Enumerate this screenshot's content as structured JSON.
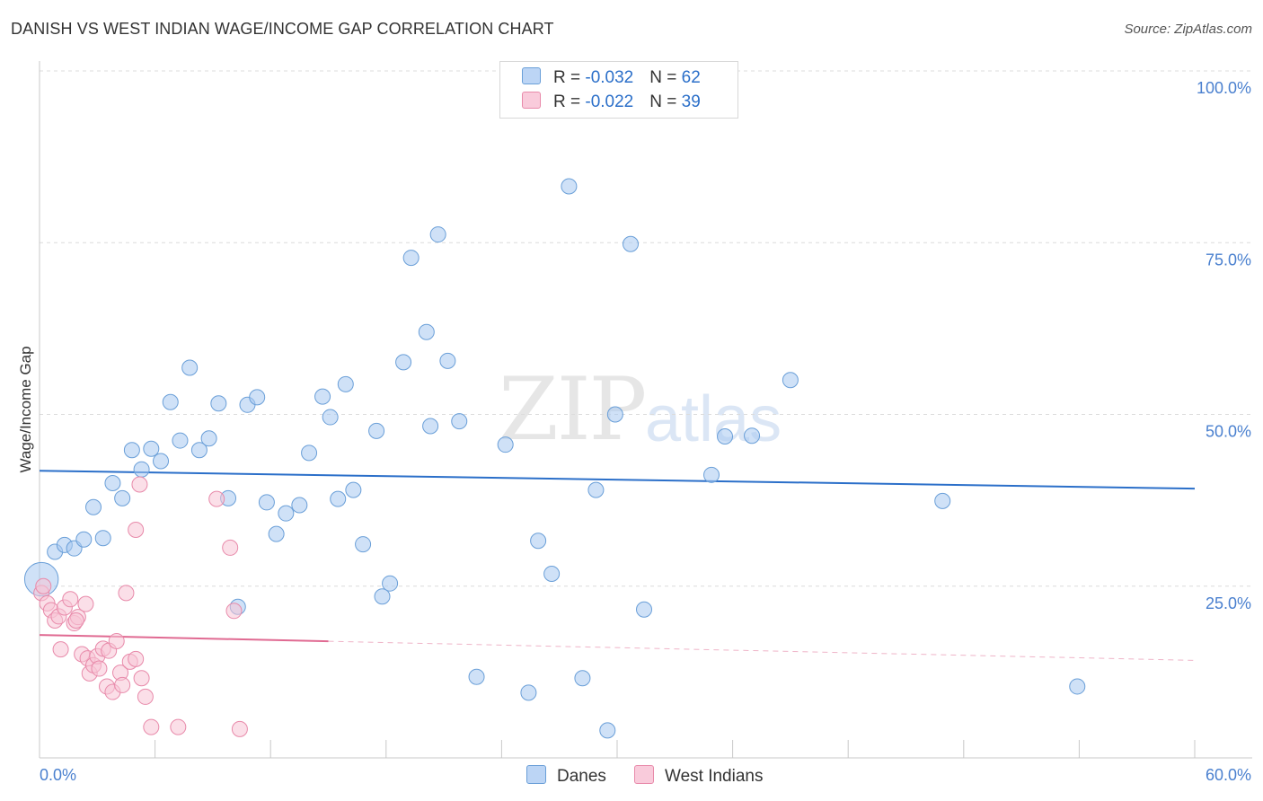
{
  "chart_data": {
    "type": "scatter",
    "title": "DANISH VS WEST INDIAN WAGE/INCOME GAP CORRELATION CHART",
    "source": "Source: ZipAtlas.com",
    "xlabel": "",
    "ylabel": "Wage/Income Gap",
    "xlim": [
      0,
      60
    ],
    "ylim": [
      0,
      100
    ],
    "x_tick_labels": [
      "0.0%",
      "60.0%"
    ],
    "y_tick_values": [
      25,
      50,
      75,
      100
    ],
    "y_tick_labels": [
      "25.0%",
      "50.0%",
      "75.0%",
      "100.0%"
    ],
    "grid": true,
    "watermark": [
      "ZIP",
      "atlas"
    ],
    "legend_stats": [
      {
        "r_label": "R = ",
        "r_value": "-0.032",
        "n_label": "N = ",
        "n_value": "62"
      },
      {
        "r_label": "R = ",
        "r_value": "-0.022",
        "n_label": "N = ",
        "n_value": "39"
      }
    ],
    "series": [
      {
        "name": "Danes",
        "color": "#a8c8f0",
        "stroke": "#6a9fd8",
        "trend": {
          "x0": 0,
          "y0": 41.8,
          "x1": 60,
          "y1": 39.2,
          "color": "#2b6fc9",
          "solid_to": 60
        },
        "points": [
          [
            0.1,
            26.0,
            2.2
          ],
          [
            0.8,
            30.0,
            1
          ],
          [
            1.3,
            31.0,
            1
          ],
          [
            1.8,
            30.5,
            1
          ],
          [
            2.3,
            31.8,
            1
          ],
          [
            2.8,
            36.5,
            1
          ],
          [
            3.3,
            32.0,
            1
          ],
          [
            3.8,
            40.0,
            1
          ],
          [
            4.3,
            37.8,
            1
          ],
          [
            4.8,
            44.8,
            1
          ],
          [
            5.3,
            42.0,
            1
          ],
          [
            5.8,
            45.0,
            1
          ],
          [
            6.3,
            43.2,
            1
          ],
          [
            6.8,
            51.8,
            1
          ],
          [
            7.3,
            46.2,
            1
          ],
          [
            7.8,
            56.8,
            1
          ],
          [
            8.3,
            44.8,
            1
          ],
          [
            8.8,
            46.5,
            1
          ],
          [
            9.3,
            51.6,
            1
          ],
          [
            9.8,
            37.8,
            1
          ],
          [
            10.3,
            22.0,
            1
          ],
          [
            10.8,
            51.4,
            1
          ],
          [
            11.3,
            52.5,
            1
          ],
          [
            11.8,
            37.2,
            1
          ],
          [
            12.3,
            32.6,
            1
          ],
          [
            12.8,
            35.6,
            1
          ],
          [
            13.5,
            36.8,
            1
          ],
          [
            14.0,
            44.4,
            1
          ],
          [
            14.7,
            52.6,
            1
          ],
          [
            15.1,
            49.6,
            1
          ],
          [
            15.5,
            37.7,
            1
          ],
          [
            15.9,
            54.4,
            1
          ],
          [
            16.3,
            39.0,
            1
          ],
          [
            16.8,
            31.1,
            1
          ],
          [
            17.5,
            47.6,
            1
          ],
          [
            17.8,
            23.5,
            1
          ],
          [
            18.2,
            25.4,
            1
          ],
          [
            18.9,
            57.6,
            1
          ],
          [
            19.3,
            72.8,
            1
          ],
          [
            20.1,
            62.0,
            1
          ],
          [
            20.3,
            48.3,
            1
          ],
          [
            20.7,
            76.2,
            1
          ],
          [
            21.2,
            57.8,
            1
          ],
          [
            21.8,
            49.0,
            1
          ],
          [
            22.7,
            11.8,
            1
          ],
          [
            24.2,
            45.6,
            1
          ],
          [
            25.4,
            9.5,
            1
          ],
          [
            25.9,
            31.6,
            1
          ],
          [
            26.6,
            26.8,
            1
          ],
          [
            27.5,
            83.2,
            1
          ],
          [
            28.2,
            11.6,
            1
          ],
          [
            28.9,
            39.0,
            1
          ],
          [
            29.5,
            4.0,
            1
          ],
          [
            29.9,
            50.0,
            1
          ],
          [
            30.7,
            74.8,
            1
          ],
          [
            31.4,
            21.6,
            1
          ],
          [
            34.9,
            41.2,
            1
          ],
          [
            35.6,
            46.8,
            1
          ],
          [
            37.0,
            46.9,
            1
          ],
          [
            39.0,
            55.0,
            1
          ],
          [
            46.9,
            37.4,
            1
          ],
          [
            53.9,
            10.4,
            1
          ]
        ]
      },
      {
        "name": "West Indians",
        "color": "#f8c4d6",
        "stroke": "#e88aaa",
        "trend": {
          "x0": 0,
          "y0": 17.9,
          "x1": 60,
          "y1": 14.2,
          "color": "#e06a92",
          "solid_to": 15
        },
        "points": [
          [
            0.1,
            24.0,
            1
          ],
          [
            0.4,
            22.5,
            1
          ],
          [
            0.6,
            21.5,
            1
          ],
          [
            0.8,
            20.0,
            1
          ],
          [
            1.0,
            20.6,
            1
          ],
          [
            1.1,
            15.8,
            1
          ],
          [
            1.3,
            21.9,
            1
          ],
          [
            1.6,
            23.1,
            1
          ],
          [
            1.8,
            19.6,
            1
          ],
          [
            2.0,
            20.5,
            1
          ],
          [
            2.2,
            15.1,
            1
          ],
          [
            2.4,
            22.4,
            1
          ],
          [
            2.5,
            14.5,
            1
          ],
          [
            2.6,
            12.3,
            1
          ],
          [
            2.8,
            13.5,
            1
          ],
          [
            3.0,
            14.8,
            1
          ],
          [
            3.1,
            13.0,
            1
          ],
          [
            3.3,
            15.9,
            1
          ],
          [
            3.5,
            10.4,
            1
          ],
          [
            3.6,
            15.6,
            1
          ],
          [
            3.8,
            9.6,
            1
          ],
          [
            4.0,
            17.0,
            1
          ],
          [
            4.2,
            12.4,
            1
          ],
          [
            4.3,
            10.6,
            1
          ],
          [
            4.5,
            24.0,
            1
          ],
          [
            4.7,
            14.0,
            1
          ],
          [
            5.0,
            14.4,
            1
          ],
          [
            5.0,
            33.2,
            1
          ],
          [
            5.2,
            39.8,
            1
          ],
          [
            5.3,
            11.6,
            1
          ],
          [
            5.5,
            8.9,
            1
          ],
          [
            5.8,
            4.5,
            1
          ],
          [
            7.2,
            4.5,
            1
          ],
          [
            9.2,
            37.7,
            1
          ],
          [
            9.9,
            30.6,
            1
          ],
          [
            10.1,
            21.4,
            1
          ],
          [
            10.4,
            4.2,
            1
          ],
          [
            0.2,
            25.0,
            1
          ],
          [
            1.9,
            20.0,
            1
          ]
        ]
      }
    ]
  }
}
